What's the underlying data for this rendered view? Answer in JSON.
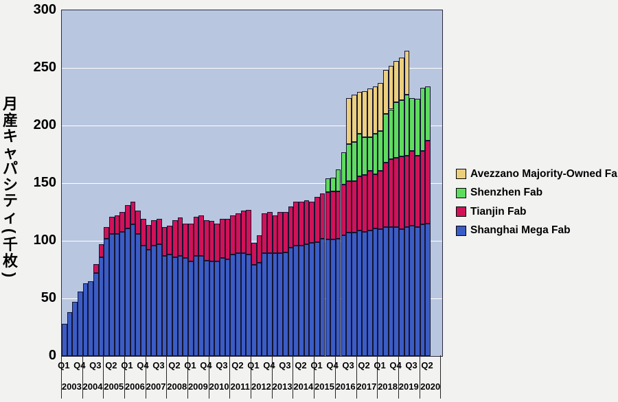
{
  "y_axis": {
    "title": "月産キャパシティ(千枚)",
    "ticks": [
      300,
      250,
      200,
      150,
      100,
      50,
      0
    ],
    "max": 300
  },
  "x_axis": {
    "tick_labels": [
      "Q1",
      "Q4",
      "Q3",
      "Q2",
      "Q1",
      "Q4",
      "Q3",
      "Q2",
      "Q1",
      "Q4",
      "Q3",
      "Q2",
      "Q1",
      "Q4",
      "Q3",
      "Q2",
      "Q1",
      "Q4",
      "Q3",
      "Q2",
      "Q1",
      "Q4",
      "Q3",
      "Q2"
    ],
    "tick_interval": 3,
    "years": [
      "2003",
      "2004",
      "2005",
      "2006",
      "2007",
      "2008",
      "2009",
      "2010",
      "2011",
      "2012",
      "2013",
      "2014",
      "2015",
      "2016",
      "2017",
      "2018",
      "2019",
      "2020"
    ]
  },
  "legend": [
    {
      "label": "Avezzano Majority-Owned Fab",
      "color": "#eccf7d"
    },
    {
      "label": "Shenzhen Fab",
      "color": "#5edc5e"
    },
    {
      "label": "Tianjin Fab",
      "color": "#d11258"
    },
    {
      "label": "Shanghai Mega Fab",
      "color": "#3b5cc4"
    }
  ],
  "colors": {
    "plot_background": "#b9c6e0",
    "page_background": "#f2f2f1",
    "gridline": "#ffffff",
    "bar_border": "#141432",
    "text": "#000000"
  },
  "chart_data": {
    "type": "bar",
    "stacked": true,
    "title": "",
    "ylabel": "月産キャパシティ(千枚)",
    "xlabel": "",
    "ylim": [
      0,
      300
    ],
    "grid": "horizontal-white-every-50",
    "legend_position": "right",
    "categories": [
      "Q1 2003",
      "Q2 2003",
      "Q3 2003",
      "Q4 2003",
      "Q1 2004",
      "Q2 2004",
      "Q3 2004",
      "Q4 2004",
      "Q1 2005",
      "Q2 2005",
      "Q3 2005",
      "Q4 2005",
      "Q1 2006",
      "Q2 2006",
      "Q3 2006",
      "Q4 2006",
      "Q1 2007",
      "Q2 2007",
      "Q3 2007",
      "Q4 2007",
      "Q1 2008",
      "Q2 2008",
      "Q3 2008",
      "Q4 2008",
      "Q1 2009",
      "Q2 2009",
      "Q3 2009",
      "Q4 2009",
      "Q1 2010",
      "Q2 2010",
      "Q3 2010",
      "Q4 2010",
      "Q1 2011",
      "Q2 2011",
      "Q3 2011",
      "Q4 2011",
      "Q1 2012",
      "Q2 2012",
      "Q3 2012",
      "Q4 2012",
      "Q1 2013",
      "Q2 2013",
      "Q3 2013",
      "Q4 2013",
      "Q1 2014",
      "Q2 2014",
      "Q3 2014",
      "Q4 2014",
      "Q1 2015",
      "Q2 2015",
      "Q3 2015",
      "Q4 2015",
      "Q1 2016",
      "Q2 2016",
      "Q3 2016",
      "Q4 2016",
      "Q1 2017",
      "Q2 2017",
      "Q3 2017",
      "Q4 2017",
      "Q1 2018",
      "Q2 2018",
      "Q3 2018",
      "Q4 2018",
      "Q1 2019",
      "Q2 2019",
      "Q3 2019",
      "Q4 2019",
      "Q1 2020",
      "Q2 2020"
    ],
    "series": [
      {
        "name": "Shanghai Mega Fab",
        "color": "#3b5cc4",
        "values": [
          28,
          38,
          47,
          56,
          63,
          65,
          72,
          86,
          102,
          106,
          106,
          108,
          111,
          114,
          106,
          96,
          92,
          96,
          97,
          87,
          88,
          86,
          87,
          85,
          82,
          87,
          87,
          83,
          82,
          82,
          85,
          84,
          88,
          89,
          89,
          88,
          79,
          81,
          89,
          89,
          89,
          89,
          90,
          94,
          96,
          96,
          97,
          98,
          99,
          102,
          101,
          101,
          102,
          105,
          107,
          107,
          109,
          108,
          109,
          111,
          110,
          112,
          112,
          112,
          110,
          112,
          113,
          112,
          114,
          115
        ]
      },
      {
        "name": "Tianjin Fab",
        "color": "#d11258",
        "values": [
          0,
          0,
          0,
          0,
          0,
          0,
          8,
          11,
          10,
          15,
          16,
          17,
          20,
          20,
          20,
          23,
          22,
          22,
          22,
          25,
          25,
          32,
          33,
          30,
          33,
          34,
          35,
          35,
          35,
          33,
          34,
          35,
          34,
          35,
          37,
          39,
          19,
          24,
          35,
          36,
          33,
          36,
          35,
          36,
          38,
          38,
          38,
          36,
          39,
          39,
          41,
          42,
          41,
          44,
          45,
          45,
          47,
          49,
          52,
          47,
          51,
          56,
          59,
          60,
          63,
          62,
          65,
          62,
          64,
          72
        ]
      },
      {
        "name": "Shenzhen Fab",
        "color": "#5edc5e",
        "values": [
          0,
          0,
          0,
          0,
          0,
          0,
          0,
          0,
          0,
          0,
          0,
          0,
          0,
          0,
          0,
          0,
          0,
          0,
          0,
          0,
          0,
          0,
          0,
          0,
          0,
          0,
          0,
          0,
          0,
          0,
          0,
          0,
          0,
          0,
          0,
          0,
          0,
          0,
          0,
          0,
          0,
          0,
          0,
          0,
          0,
          0,
          0,
          0,
          0,
          0,
          12,
          12,
          19,
          28,
          32,
          34,
          37,
          33,
          29,
          35,
          34,
          42,
          43,
          48,
          49,
          53,
          46,
          49,
          55,
          47
        ]
      },
      {
        "name": "Avezzano Majority-Owned Fab",
        "color": "#eccf7d",
        "values": [
          0,
          0,
          0,
          0,
          0,
          0,
          0,
          0,
          0,
          0,
          0,
          0,
          0,
          0,
          0,
          0,
          0,
          0,
          0,
          0,
          0,
          0,
          0,
          0,
          0,
          0,
          0,
          0,
          0,
          0,
          0,
          0,
          0,
          0,
          0,
          0,
          0,
          0,
          0,
          0,
          0,
          0,
          0,
          0,
          0,
          0,
          0,
          0,
          0,
          0,
          0,
          0,
          0,
          0,
          40,
          41,
          36,
          40,
          42,
          41,
          42,
          38,
          38,
          36,
          37,
          38,
          0,
          0,
          0,
          0
        ]
      }
    ]
  }
}
